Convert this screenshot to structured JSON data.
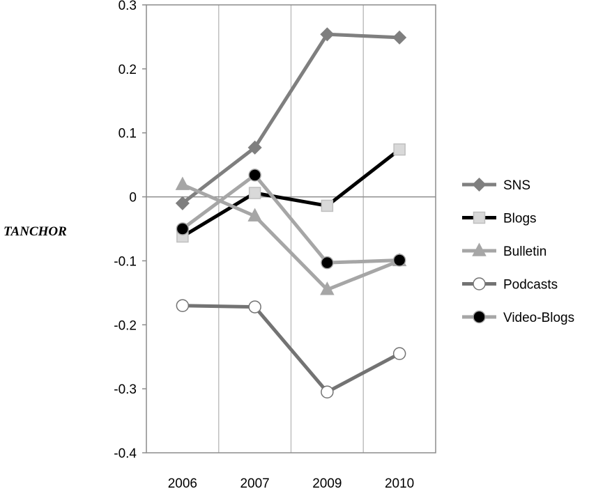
{
  "chart_data": {
    "type": "line",
    "ylabel": "TANCHOR",
    "categories": [
      "2006",
      "2007",
      "2009",
      "2010"
    ],
    "ylim": [
      -0.4,
      0.3
    ],
    "yticks": [
      0.3,
      0.2,
      0.1,
      0,
      -0.1,
      -0.2,
      -0.3,
      -0.4
    ],
    "ytick_labels": [
      "0.3",
      "0.2",
      "0.1",
      "0",
      "-0.1",
      "-0.2",
      "-0.3",
      "-0.4"
    ],
    "grid": "vertical",
    "legend_position": "right",
    "series": [
      {
        "name": "SNS",
        "values": [
          -0.01,
          0.077,
          0.254,
          0.249
        ],
        "color": "#7f7f7f",
        "marker": "diamond",
        "marker_fill": "#7f7f7f",
        "marker_stroke": "#7f7f7f"
      },
      {
        "name": "Blogs",
        "values": [
          -0.062,
          0.006,
          -0.014,
          0.074
        ],
        "color": "#000000",
        "marker": "square",
        "marker_fill": "#d9d9d9",
        "marker_stroke": "#bfbfbf"
      },
      {
        "name": "Bulletin",
        "values": [
          0.019,
          -0.03,
          -0.145,
          -0.1
        ],
        "color": "#a6a6a6",
        "marker": "triangle",
        "marker_fill": "#a6a6a6",
        "marker_stroke": "#a6a6a6"
      },
      {
        "name": "Podcasts",
        "values": [
          -0.17,
          -0.172,
          -0.305,
          -0.245
        ],
        "color": "#737373",
        "marker": "circle",
        "marker_fill": "#ffffff",
        "marker_stroke": "#737373"
      },
      {
        "name": "Video-Blogs",
        "values": [
          -0.05,
          0.034,
          -0.103,
          -0.099
        ],
        "color": "#a6a6a6",
        "marker": "circle",
        "marker_fill": "#000000",
        "marker_stroke": "#a6a6a6"
      }
    ]
  }
}
